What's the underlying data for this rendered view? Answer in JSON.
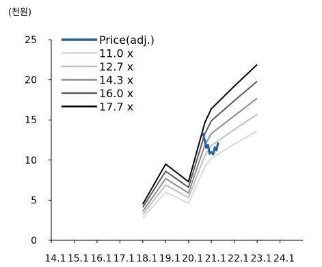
{
  "chart_data": {
    "type": "line",
    "unit_label": "(천원)",
    "x_ticks": [
      "14.1",
      "15.1",
      "16.1",
      "17.1",
      "18.1",
      "19.1",
      "20.1",
      "21.1",
      "22.1",
      "23.1",
      "24.1"
    ],
    "y_ticks": [
      "0",
      "5",
      "10",
      "15",
      "20",
      "25"
    ],
    "ylim": [
      0,
      25
    ],
    "xlim": [
      2014,
      2025
    ],
    "grid": false,
    "legend_position": "top-left",
    "series": [
      {
        "name": "Price(adj.)",
        "color": "#1f5fa6",
        "width": 3,
        "points": [
          [
            2020.62,
            13.4
          ],
          [
            2020.7,
            12.6
          ],
          [
            2020.78,
            11.5
          ],
          [
            2020.85,
            11.9
          ],
          [
            2020.92,
            10.8
          ],
          [
            2021.0,
            11.0
          ],
          [
            2021.08,
            10.7
          ],
          [
            2021.15,
            11.6
          ],
          [
            2021.22,
            11.2
          ],
          [
            2021.3,
            12.2
          ]
        ]
      },
      {
        "name": "11.0 x",
        "color": "#d9d9d9",
        "width": 2,
        "points": [
          [
            2018.0,
            2.8
          ],
          [
            2019.0,
            6.0
          ],
          [
            2020.0,
            4.6
          ],
          [
            2020.72,
            9.2
          ],
          [
            2021.0,
            10.2
          ],
          [
            2022.0,
            12.0
          ],
          [
            2023.0,
            13.6
          ]
        ]
      },
      {
        "name": "12.7 x",
        "color": "#bfbfbf",
        "width": 2,
        "points": [
          [
            2018.0,
            3.2
          ],
          [
            2019.0,
            6.9
          ],
          [
            2020.0,
            5.3
          ],
          [
            2020.72,
            10.6
          ],
          [
            2021.0,
            11.8
          ],
          [
            2022.0,
            13.8
          ],
          [
            2023.0,
            15.7
          ]
        ]
      },
      {
        "name": "14.3 x",
        "color": "#8c8c8c",
        "width": 2,
        "points": [
          [
            2018.0,
            3.6
          ],
          [
            2019.0,
            7.7
          ],
          [
            2020.0,
            5.9
          ],
          [
            2020.72,
            11.9
          ],
          [
            2021.0,
            13.3
          ],
          [
            2022.0,
            15.5
          ],
          [
            2023.0,
            17.7
          ]
        ]
      },
      {
        "name": "16.0 x",
        "color": "#595959",
        "width": 2,
        "points": [
          [
            2018.0,
            4.1
          ],
          [
            2019.0,
            8.6
          ],
          [
            2020.0,
            6.6
          ],
          [
            2020.72,
            13.3
          ],
          [
            2021.0,
            14.9
          ],
          [
            2022.0,
            17.4
          ],
          [
            2023.0,
            19.8
          ]
        ]
      },
      {
        "name": "17.7 x",
        "color": "#000000",
        "width": 2,
        "points": [
          [
            2018.0,
            4.5
          ],
          [
            2019.0,
            9.5
          ],
          [
            2020.0,
            7.3
          ],
          [
            2020.72,
            14.7
          ],
          [
            2021.0,
            16.4
          ],
          [
            2022.0,
            19.2
          ],
          [
            2023.0,
            21.9
          ]
        ]
      }
    ]
  }
}
